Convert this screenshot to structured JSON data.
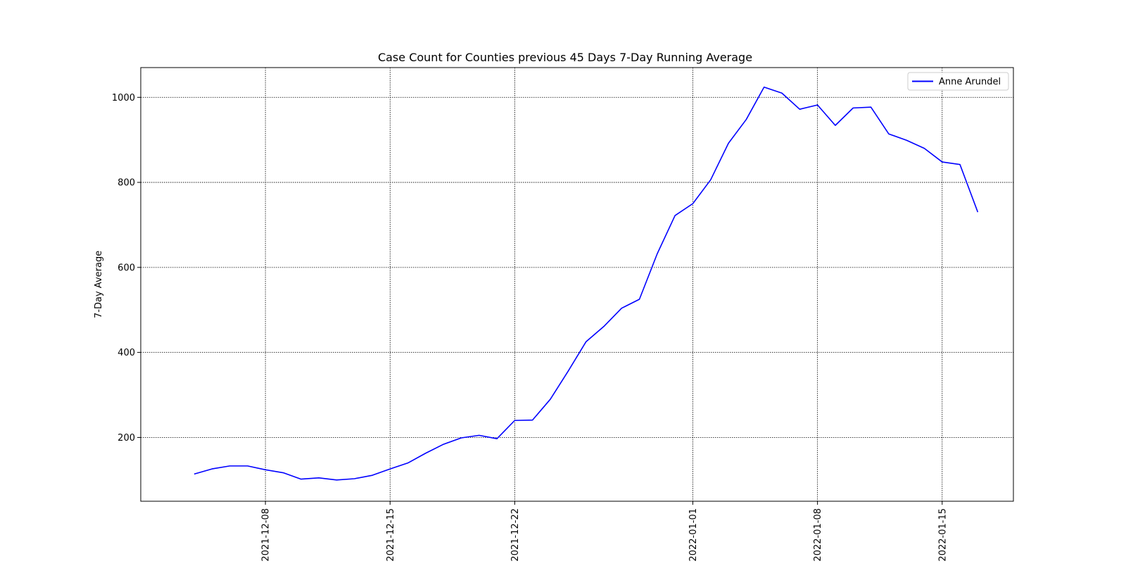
{
  "chart_data": {
    "type": "line",
    "title": "Case Count for Counties previous 45 Days 7-Day Running Average",
    "xlabel": "",
    "ylabel": "7-Day Average",
    "x_tick_labels": [
      "2021-12-08",
      "2021-12-15",
      "2021-12-22",
      "2022-01-01",
      "2022-01-08",
      "2022-01-15"
    ],
    "y_tick_labels": [
      "200",
      "400",
      "600",
      "800",
      "1000"
    ],
    "y_ticks": [
      200,
      400,
      600,
      800,
      1000
    ],
    "xlim": [
      "2021-12-01",
      "2022-01-19"
    ],
    "ylim": [
      50,
      1070
    ],
    "grid": true,
    "legend_position": "top-right",
    "x": [
      "2021-12-04",
      "2021-12-05",
      "2021-12-06",
      "2021-12-07",
      "2021-12-08",
      "2021-12-09",
      "2021-12-10",
      "2021-12-11",
      "2021-12-12",
      "2021-12-13",
      "2021-12-14",
      "2021-12-15",
      "2021-12-16",
      "2021-12-17",
      "2021-12-18",
      "2021-12-19",
      "2021-12-20",
      "2021-12-21",
      "2021-12-22",
      "2021-12-23",
      "2021-12-24",
      "2021-12-25",
      "2021-12-26",
      "2021-12-27",
      "2021-12-28",
      "2021-12-29",
      "2021-12-30",
      "2021-12-31",
      "2022-01-01",
      "2022-01-02",
      "2022-01-03",
      "2022-01-04",
      "2022-01-05",
      "2022-01-06",
      "2022-01-07",
      "2022-01-08",
      "2022-01-09",
      "2022-01-10",
      "2022-01-11",
      "2022-01-12",
      "2022-01-13",
      "2022-01-14",
      "2022-01-15",
      "2022-01-16",
      "2022-01-17"
    ],
    "series": [
      {
        "name": "Anne Arundel",
        "color": "#0000ff",
        "values": [
          114,
          126,
          133,
          133,
          124,
          117,
          102,
          105,
          100,
          103,
          111,
          126,
          140,
          163,
          184,
          199,
          205,
          197,
          240,
          241,
          290,
          356,
          425,
          461,
          504,
          525,
          632,
          722,
          750,
          806,
          892,
          948,
          1024,
          1010,
          972,
          982,
          934,
          975,
          977,
          914,
          899,
          880,
          848,
          842,
          730
        ]
      }
    ]
  }
}
